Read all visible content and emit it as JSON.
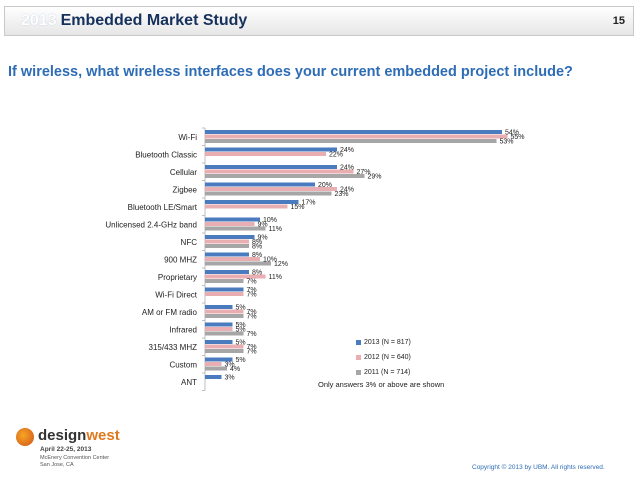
{
  "header": {
    "year": "2013",
    "title": "Embedded Market Study",
    "page_number": "15"
  },
  "question": "If wireless, what wireless interfaces does your current embedded project include?",
  "note": "Only answers 3% or above are shown",
  "logo": {
    "name_part1": "design",
    "name_part2": "west",
    "dates": "April 22-25, 2013",
    "venue": "McEnery Convention Center",
    "city": "San Jose, CA"
  },
  "copyright": "Copyright © 2013 by UBM. All rights reserved.",
  "chart_data": {
    "type": "bar",
    "orientation": "horizontal",
    "categories": [
      "Wi-Fi",
      "Bluetooth Classic",
      "Cellular",
      "Zigbee",
      "Bluetooth LE/Smart",
      "Unlicensed 2.4-GHz band",
      "NFC",
      "900 MHZ",
      "Proprietary",
      "Wi-Fi Direct",
      "AM or FM radio",
      "Infrared",
      "315/433 MHZ",
      "Custom",
      "ANT"
    ],
    "series": [
      {
        "name": "2013 (N = 817)",
        "color": "#4a7bbf",
        "values": [
          54,
          24,
          24,
          20,
          17,
          10,
          9,
          8,
          8,
          7,
          5,
          5,
          5,
          5,
          3
        ]
      },
      {
        "name": "2012 (N = 640)",
        "color": "#e9aeb2",
        "values": [
          55,
          22,
          27,
          24,
          15,
          9,
          8,
          10,
          11,
          7,
          7,
          5,
          7,
          3,
          null
        ]
      },
      {
        "name": "2011 (N = 714)",
        "color": "#a6a6a6",
        "values": [
          53,
          null,
          29,
          23,
          null,
          11,
          8,
          12,
          7,
          null,
          7,
          7,
          7,
          4,
          null
        ]
      }
    ],
    "value_suffix": "%",
    "legend_position": "bottom-right"
  }
}
